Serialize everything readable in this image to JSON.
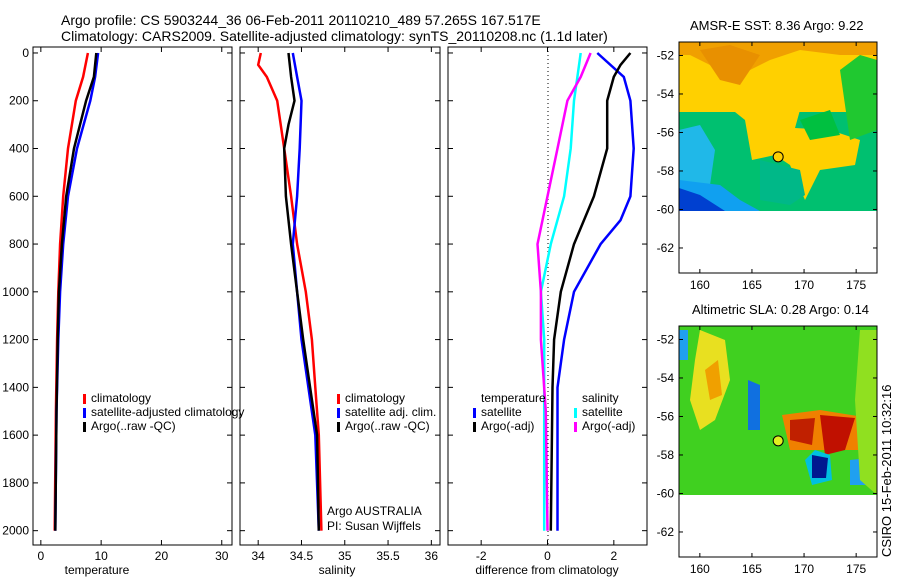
{
  "title": {
    "line1": "Argo profile: CS 5903244_36 06-Feb-2011 20110210_489 57.265S 167.517E",
    "line2": "Climatology: CARS2009. Satellite-adjusted climatology: synTS_20110208.nc (1.1d later)"
  },
  "credit": {
    "argo": "Argo AUSTRALIA",
    "pi": "PI: Susan Wijffels"
  },
  "timestamp": "CSIRO 15-Feb-2011 10:32:16",
  "colors": {
    "red": "#ff0000",
    "blue": "#0000ff",
    "black": "#000000",
    "cyan": "#00ffff",
    "magenta": "#ff00ff"
  },
  "chart_data": [
    {
      "type": "line",
      "xlabel": "temperature",
      "ylabel": "",
      "xlim": [
        -1.3,
        31.7
      ],
      "ylim": [
        2060,
        -25
      ],
      "xticks": [
        "0",
        "10",
        "20",
        "30"
      ],
      "yticks": [
        "0",
        "200",
        "400",
        "600",
        "800",
        "1000",
        "1200",
        "1400",
        "1600",
        "1800",
        "2000"
      ],
      "legend": [
        "climatology",
        "satellite-adjusted climatology",
        "Argo(..raw -QC)"
      ],
      "series": [
        {
          "name": "climatology",
          "color": "#ff0000",
          "points": [
            [
              7.8,
              0
            ],
            [
              7,
              100
            ],
            [
              5.8,
              200
            ],
            [
              4.5,
              400
            ],
            [
              3.7,
              600
            ],
            [
              3.2,
              800
            ],
            [
              2.9,
              1000
            ],
            [
              2.7,
              1200
            ],
            [
              2.5,
              1500
            ],
            [
              2.3,
              2000
            ]
          ]
        },
        {
          "name": "satellite-adjusted climatology",
          "color": "#0000ff",
          "points": [
            [
              9.5,
              0
            ],
            [
              9.0,
              100
            ],
            [
              8.2,
              200
            ],
            [
              6,
              400
            ],
            [
              4.5,
              600
            ],
            [
              3.7,
              800
            ],
            [
              3.2,
              1000
            ],
            [
              2.9,
              1200
            ],
            [
              2.6,
              1500
            ],
            [
              2.4,
              2000
            ]
          ]
        },
        {
          "name": "Argo(..raw -QC)",
          "color": "#000000",
          "points": [
            [
              9.2,
              0
            ],
            [
              9.0,
              50
            ],
            [
              8.8,
              100
            ],
            [
              7.5,
              200
            ],
            [
              5.5,
              400
            ],
            [
              4.2,
              600
            ],
            [
              3.5,
              800
            ],
            [
              3.0,
              1000
            ],
            [
              2.8,
              1200
            ],
            [
              2.6,
              1500
            ],
            [
              2.4,
              2000
            ]
          ]
        }
      ]
    },
    {
      "type": "line",
      "xlabel": "salinity",
      "xlim": [
        33.79,
        36.1
      ],
      "ylim": [
        2060,
        -25
      ],
      "xticks": [
        "34",
        "34.5",
        "35",
        "35.5",
        "36"
      ],
      "legend": [
        "climatology",
        "satellite adj. clim.",
        "Argo(..raw -QC)"
      ],
      "series": [
        {
          "name": "climatology",
          "color": "#ff0000",
          "points": [
            [
              34.03,
              0
            ],
            [
              34.0,
              50
            ],
            [
              34.1,
              100
            ],
            [
              34.22,
              200
            ],
            [
              34.3,
              400
            ],
            [
              34.38,
              600
            ],
            [
              34.45,
              800
            ],
            [
              34.55,
              1000
            ],
            [
              34.62,
              1200
            ],
            [
              34.66,
              1400
            ],
            [
              34.7,
              1600
            ],
            [
              34.73,
              2000
            ]
          ]
        },
        {
          "name": "satellite adj. clim.",
          "color": "#0000ff",
          "points": [
            [
              34.4,
              0
            ],
            [
              34.45,
              100
            ],
            [
              34.5,
              200
            ],
            [
              34.48,
              400
            ],
            [
              34.45,
              600
            ],
            [
              34.4,
              800
            ],
            [
              34.45,
              1000
            ],
            [
              34.5,
              1200
            ],
            [
              34.58,
              1400
            ],
            [
              34.66,
              1600
            ],
            [
              34.7,
              2000
            ]
          ]
        },
        {
          "name": "Argo(..raw -QC)",
          "color": "#000000",
          "points": [
            [
              34.35,
              0
            ],
            [
              34.38,
              100
            ],
            [
              34.42,
              200
            ],
            [
              34.35,
              300
            ],
            [
              34.3,
              400
            ],
            [
              34.32,
              600
            ],
            [
              34.38,
              800
            ],
            [
              34.45,
              1000
            ],
            [
              34.52,
              1200
            ],
            [
              34.6,
              1400
            ],
            [
              34.68,
              1600
            ],
            [
              34.7,
              2000
            ]
          ]
        }
      ]
    },
    {
      "type": "line",
      "xlabel": "difference from climatology",
      "xlim": [
        -3,
        3
      ],
      "ylim": [
        2060,
        -25
      ],
      "xticks": [
        "-2",
        "0",
        "2"
      ],
      "legend_temperature": {
        "heading": "temperature",
        "items": [
          "satellite",
          "Argo(-adj)"
        ]
      },
      "legend_salinity": {
        "heading": "salinity",
        "items": [
          "satellite",
          "Argo(-adj)"
        ]
      },
      "series": [
        {
          "name": "temperature satellite",
          "color": "#0000ff",
          "points": [
            [
              1.5,
              0
            ],
            [
              2.3,
              100
            ],
            [
              2.5,
              200
            ],
            [
              2.6,
              400
            ],
            [
              2.5,
              600
            ],
            [
              2.2,
              700
            ],
            [
              1.6,
              800
            ],
            [
              0.8,
              1000
            ],
            [
              0.5,
              1200
            ],
            [
              0.3,
              1400
            ],
            [
              0.3,
              2000
            ]
          ]
        },
        {
          "name": "temperature Argo(-adj)",
          "color": "#000000",
          "points": [
            [
              2.5,
              0
            ],
            [
              2.2,
              50
            ],
            [
              2.0,
              100
            ],
            [
              1.8,
              200
            ],
            [
              1.8,
              400
            ],
            [
              1.4,
              600
            ],
            [
              0.8,
              800
            ],
            [
              0.4,
              1000
            ],
            [
              0.2,
              1200
            ],
            [
              0.15,
              1400
            ],
            [
              0.1,
              2000
            ]
          ]
        },
        {
          "name": "salinity satellite",
          "color": "#00ffff",
          "points": [
            [
              1.0,
              0
            ],
            [
              0.9,
              100
            ],
            [
              0.8,
              200
            ],
            [
              0.7,
              400
            ],
            [
              0.5,
              600
            ],
            [
              0.1,
              800
            ],
            [
              -0.2,
              1000
            ],
            [
              -0.1,
              1200
            ],
            [
              -0.1,
              1500
            ],
            [
              -0.1,
              2000
            ]
          ]
        },
        {
          "name": "salinity Argo(-adj)",
          "color": "#ff00ff",
          "points": [
            [
              1.3,
              0
            ],
            [
              1.0,
              100
            ],
            [
              0.6,
              200
            ],
            [
              0.3,
              400
            ],
            [
              0.0,
              600
            ],
            [
              -0.3,
              800
            ],
            [
              -0.2,
              1000
            ],
            [
              -0.2,
              1200
            ],
            [
              -0.05,
              1500
            ],
            [
              0.0,
              2000
            ]
          ]
        }
      ]
    },
    {
      "type": "heatmap",
      "title": "AMSR-E SST: 8.36 Argo: 9.22",
      "xlim": [
        158,
        177
      ],
      "ylim": [
        -63.3,
        -51.3
      ],
      "xticks": [
        "160",
        "165",
        "170",
        "175"
      ],
      "yticks": [
        "-52",
        "-54",
        "-56",
        "-58",
        "-60",
        "-62"
      ],
      "marker": [
        167.517,
        -57.265
      ]
    },
    {
      "type": "heatmap",
      "title": "Altimetric SLA: 0.28 Argo: 0.14",
      "xlim": [
        158,
        177
      ],
      "ylim": [
        -63.3,
        -51.3
      ],
      "xticks": [
        "160",
        "165",
        "170",
        "175"
      ],
      "yticks": [
        "-52",
        "-54",
        "-56",
        "-58",
        "-60",
        "-62"
      ],
      "marker": [
        167.517,
        -57.265
      ]
    }
  ]
}
